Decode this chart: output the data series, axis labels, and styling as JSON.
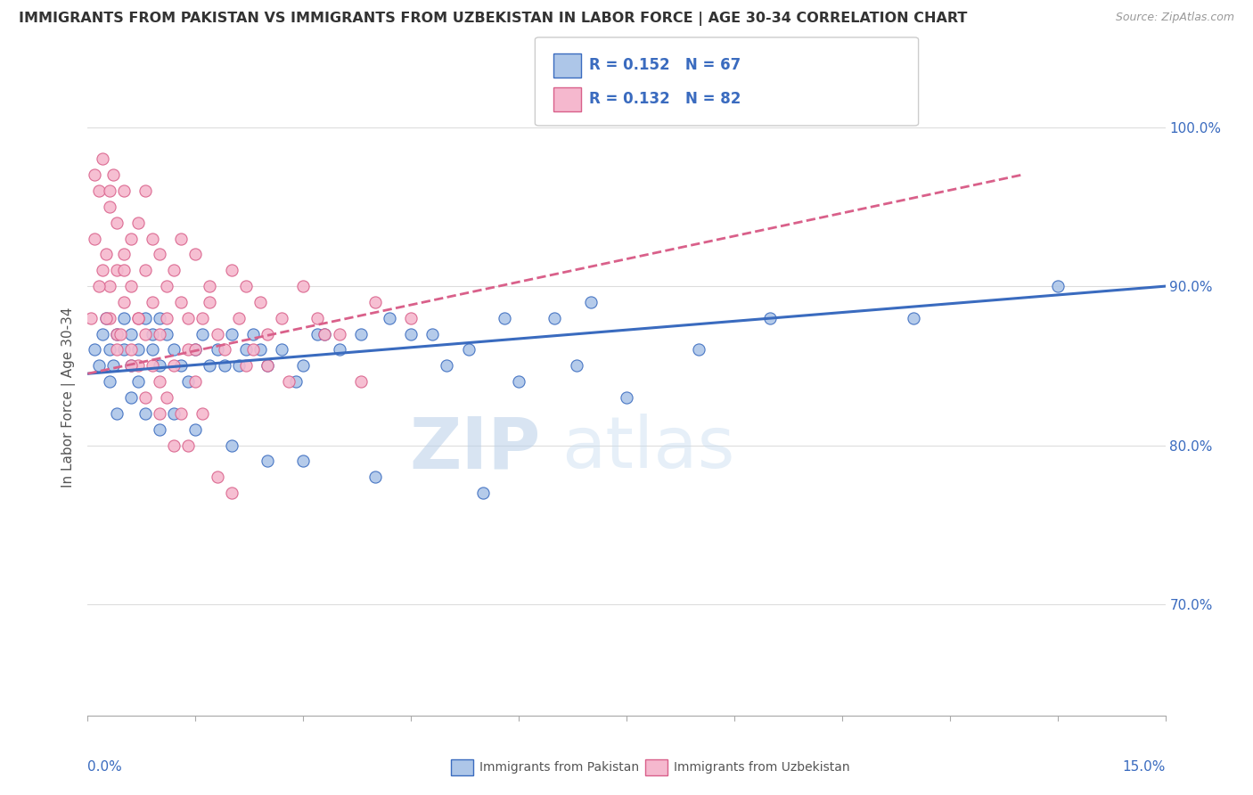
{
  "title": "IMMIGRANTS FROM PAKISTAN VS IMMIGRANTS FROM UZBEKISTAN IN LABOR FORCE | AGE 30-34 CORRELATION CHART",
  "source": "Source: ZipAtlas.com",
  "ylabel": "In Labor Force | Age 30-34",
  "xmin": 0.0,
  "xmax": 15.0,
  "ymin": 63.0,
  "ymax": 103.0,
  "yticks": [
    70.0,
    80.0,
    90.0,
    100.0
  ],
  "ytick_labels": [
    "70.0%",
    "80.0%",
    "90.0%",
    "100.0%"
  ],
  "pakistan_color": "#adc6e8",
  "uzbekistan_color": "#f5b8ce",
  "pakistan_line_color": "#3a6bbf",
  "uzbekistan_line_color": "#d9608a",
  "pakistan_R": 0.152,
  "pakistan_N": 67,
  "uzbekistan_R": 0.132,
  "uzbekistan_N": 82,
  "legend_label_pakistan": "Immigrants from Pakistan",
  "legend_label_uzbekistan": "Immigrants from Uzbekistan",
  "watermark_zip": "ZIP",
  "watermark_atlas": "atlas",
  "background_color": "#ffffff",
  "grid_color": "#dddddd",
  "pakistan_scatter_x": [
    0.1,
    0.15,
    0.2,
    0.25,
    0.3,
    0.3,
    0.35,
    0.4,
    0.5,
    0.5,
    0.6,
    0.6,
    0.7,
    0.7,
    0.8,
    0.9,
    0.9,
    1.0,
    1.0,
    1.1,
    1.2,
    1.3,
    1.4,
    1.5,
    1.6,
    1.7,
    1.8,
    2.0,
    2.1,
    2.2,
    2.3,
    2.5,
    2.7,
    2.9,
    3.0,
    3.2,
    3.5,
    3.8,
    4.2,
    4.5,
    5.0,
    5.3,
    5.8,
    6.5,
    7.0,
    8.5,
    9.5,
    11.5,
    13.5,
    0.4,
    0.6,
    0.8,
    1.0,
    1.2,
    1.5,
    2.0,
    2.5,
    3.0,
    4.0,
    5.5,
    6.0,
    7.5,
    4.8,
    3.3,
    2.4,
    1.9,
    6.8
  ],
  "pakistan_scatter_y": [
    86,
    85,
    87,
    88,
    84,
    86,
    85,
    87,
    88,
    86,
    85,
    87,
    86,
    84,
    88,
    87,
    86,
    85,
    88,
    87,
    86,
    85,
    84,
    86,
    87,
    85,
    86,
    87,
    85,
    86,
    87,
    85,
    86,
    84,
    85,
    87,
    86,
    87,
    88,
    87,
    85,
    86,
    88,
    88,
    89,
    86,
    88,
    88,
    90,
    82,
    83,
    82,
    81,
    82,
    81,
    80,
    79,
    79,
    78,
    77,
    84,
    83,
    87,
    87,
    86,
    85,
    85
  ],
  "uzbekistan_scatter_x": [
    0.05,
    0.1,
    0.1,
    0.15,
    0.2,
    0.2,
    0.25,
    0.3,
    0.3,
    0.3,
    0.35,
    0.4,
    0.4,
    0.4,
    0.5,
    0.5,
    0.5,
    0.6,
    0.6,
    0.6,
    0.7,
    0.7,
    0.7,
    0.8,
    0.8,
    0.8,
    0.9,
    0.9,
    1.0,
    1.0,
    1.0,
    1.1,
    1.1,
    1.2,
    1.2,
    1.3,
    1.3,
    1.4,
    1.4,
    1.5,
    1.5,
    1.6,
    1.7,
    1.8,
    1.9,
    2.0,
    2.1,
    2.2,
    2.3,
    2.4,
    2.5,
    2.7,
    3.0,
    3.2,
    3.5,
    4.0,
    4.5,
    0.4,
    0.6,
    0.8,
    1.0,
    1.2,
    1.4,
    1.6,
    1.8,
    2.0,
    0.3,
    0.5,
    0.7,
    0.9,
    1.1,
    1.3,
    2.2,
    2.8,
    3.3,
    0.15,
    0.25,
    0.45,
    1.5,
    2.5,
    3.8,
    1.7
  ],
  "uzbekistan_scatter_y": [
    88,
    93,
    97,
    96,
    91,
    98,
    92,
    90,
    95,
    88,
    97,
    91,
    87,
    94,
    89,
    96,
    92,
    90,
    86,
    93,
    94,
    88,
    85,
    91,
    96,
    87,
    93,
    89,
    87,
    92,
    84,
    90,
    88,
    91,
    85,
    89,
    93,
    88,
    86,
    92,
    84,
    88,
    90,
    87,
    86,
    91,
    88,
    90,
    86,
    89,
    87,
    88,
    90,
    88,
    87,
    89,
    88,
    86,
    85,
    83,
    82,
    80,
    80,
    82,
    78,
    77,
    96,
    91,
    88,
    85,
    83,
    82,
    85,
    84,
    87,
    90,
    88,
    87,
    86,
    85,
    84,
    89
  ]
}
